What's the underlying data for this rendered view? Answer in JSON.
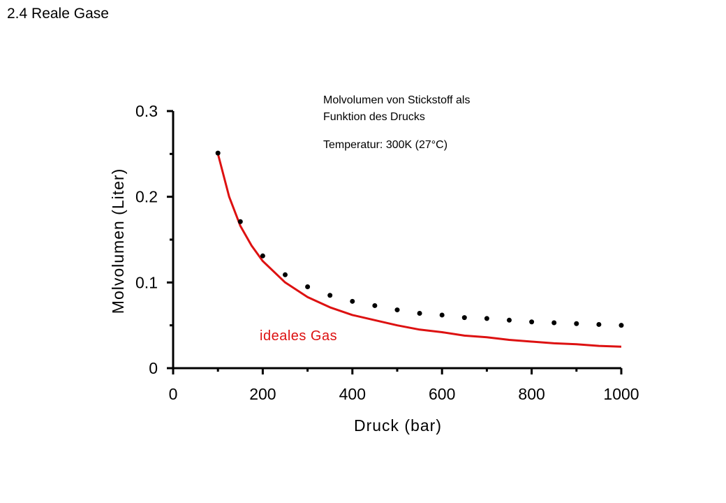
{
  "slide": {
    "title": "2.4 Reale Gase"
  },
  "annotation": {
    "line1": "Molvolumen von Stickstoff als",
    "line2": "Funktion des Drucks",
    "line3": "Temperatur: 300K  (27°C)"
  },
  "chart_data": {
    "type": "line",
    "xlabel": "Druck (bar)",
    "ylabel": "Molvolumen (Liter)",
    "xlim": [
      0,
      1000
    ],
    "ylim": [
      0,
      0.3
    ],
    "xticks": [
      0,
      200,
      400,
      600,
      800,
      1000
    ],
    "xtick_labels": [
      "0",
      "200",
      "400",
      "600",
      "800",
      "1000"
    ],
    "yticks": [
      0,
      0.1,
      0.2,
      0.3
    ],
    "ytick_labels": [
      "0",
      "0.1",
      "0.2",
      "0.3"
    ],
    "grid": false,
    "series": [
      {
        "name": "ideales Gas",
        "kind": "line",
        "color": "#dd1111",
        "x": [
          100,
          125,
          150,
          175,
          200,
          250,
          300,
          350,
          400,
          450,
          500,
          550,
          600,
          650,
          700,
          750,
          800,
          850,
          900,
          950,
          1000
        ],
        "y": [
          0.25,
          0.2,
          0.166,
          0.143,
          0.125,
          0.1,
          0.083,
          0.071,
          0.062,
          0.056,
          0.05,
          0.045,
          0.042,
          0.038,
          0.036,
          0.033,
          0.031,
          0.029,
          0.028,
          0.026,
          0.025
        ]
      },
      {
        "kind": "scatter",
        "color": "#000000",
        "x": [
          100,
          150,
          200,
          250,
          300,
          350,
          400,
          450,
          500,
          550,
          600,
          650,
          700,
          750,
          800,
          850,
          900,
          950,
          1000
        ],
        "y": [
          0.251,
          0.171,
          0.131,
          0.109,
          0.095,
          0.085,
          0.078,
          0.073,
          0.068,
          0.064,
          0.062,
          0.059,
          0.058,
          0.056,
          0.054,
          0.053,
          0.052,
          0.051,
          0.05
        ]
      }
    ]
  }
}
